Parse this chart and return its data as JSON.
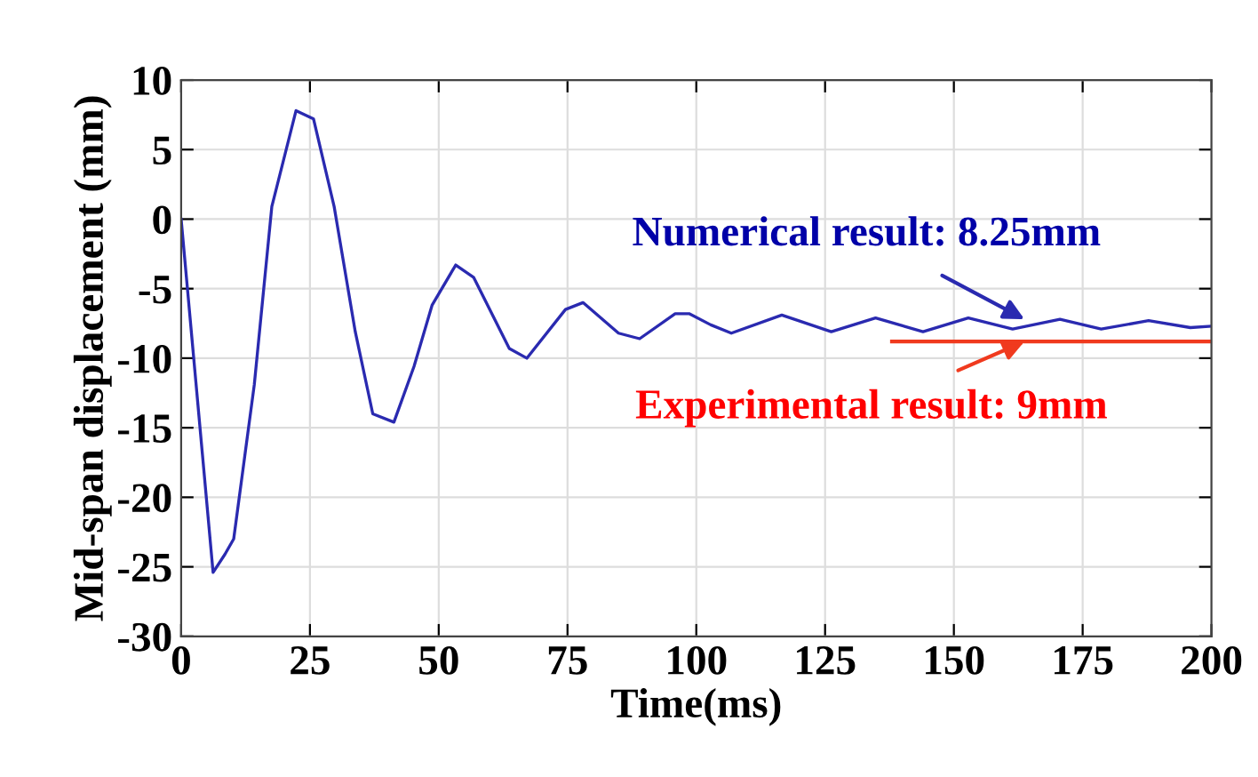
{
  "chart_data": {
    "type": "line",
    "xlabel": "Time(ms)",
    "ylabel": "Mid-span displacement (mm)",
    "xlim": [
      0,
      200
    ],
    "xticks": [
      0,
      25,
      50,
      75,
      100,
      125,
      150,
      175,
      200
    ],
    "ylim": [
      -30,
      10
    ],
    "yticks": [
      -30,
      -25,
      -20,
      -15,
      -10,
      -5,
      0,
      5,
      10
    ],
    "grid": true,
    "line_style": "solid",
    "marker": "none",
    "series": [
      {
        "color": "#2a2ab0",
        "x": [
          0,
          6.2,
          8.5,
          10.2,
          14.2,
          17.6,
          22.3,
          25.7,
          29.7,
          33.8,
          37.2,
          41.3,
          45.2,
          48.7,
          53.3,
          56.8,
          63.7,
          67.1,
          74.6,
          78,
          84.9,
          89,
          95.9,
          98.6,
          102.8,
          106.8,
          116.6,
          126.2,
          134.8,
          144,
          152.8,
          161.4,
          170.6,
          178.6,
          187.8,
          195.9,
          200
        ],
        "values": [
          0,
          -25.4,
          -24.1,
          -23,
          -11.9,
          0.9,
          7.8,
          7.2,
          0.9,
          -8.1,
          -14,
          -14.6,
          -10.6,
          -6.2,
          -3.3,
          -4.2,
          -9.3,
          -10,
          -6.5,
          -6,
          -8.2,
          -8.6,
          -6.8,
          -6.8,
          -7.6,
          -8.2,
          -6.9,
          -8.1,
          -7.1,
          -8.1,
          -7.1,
          -7.9,
          -7.2,
          -7.9,
          -7.3,
          -7.8,
          -7.7
        ]
      },
      {
        "color": "#f03a1e",
        "x": [
          138,
          200
        ],
        "values": [
          -8.8,
          -8.8
        ]
      }
    ],
    "annotations": [
      {
        "text": "Numerical result: 8.25mm",
        "x": 163.7,
        "y": -7.2
      },
      {
        "text": "Experimental result: 9mm",
        "x": 163.7,
        "y": -8.8
      }
    ]
  }
}
